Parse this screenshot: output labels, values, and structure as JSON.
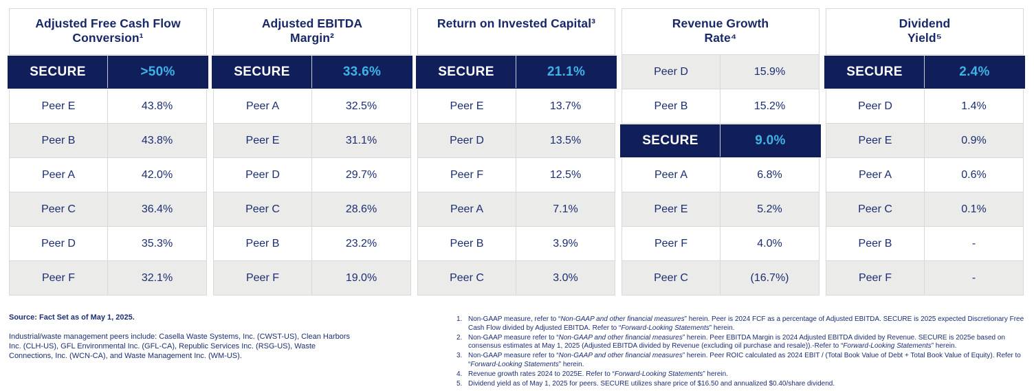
{
  "colors": {
    "brand_navy": "#101e5a",
    "brand_cyan": "#3fb3e5",
    "text_navy": "#1b2d73",
    "row_gray": "#ebebe9",
    "border_gray": "#d8d8d6"
  },
  "table": {
    "columns": [
      {
        "id": "adjusted-free-cash-flow-conversion",
        "title_lines": [
          "Adjusted Free Cash Flow",
          "Conversion¹"
        ],
        "rows": [
          {
            "name": "SECURE",
            "value": ">50%",
            "style": "secure"
          },
          {
            "name": "Peer E",
            "value": "43.8%",
            "style": "white"
          },
          {
            "name": "Peer B",
            "value": "43.8%",
            "style": "gray"
          },
          {
            "name": "Peer A",
            "value": "42.0%",
            "style": "white"
          },
          {
            "name": "Peer C",
            "value": "36.4%",
            "style": "gray"
          },
          {
            "name": "Peer D",
            "value": "35.3%",
            "style": "white"
          },
          {
            "name": "Peer F",
            "value": "32.1%",
            "style": "gray"
          }
        ]
      },
      {
        "id": "adjusted-ebitda-margin",
        "title_lines": [
          "Adjusted EBITDA",
          "Margin²"
        ],
        "rows": [
          {
            "name": "SECURE",
            "value": "33.6%",
            "style": "secure"
          },
          {
            "name": "Peer A",
            "value": "32.5%",
            "style": "white"
          },
          {
            "name": "Peer E",
            "value": "31.1%",
            "style": "gray"
          },
          {
            "name": "Peer D",
            "value": "29.7%",
            "style": "white"
          },
          {
            "name": "Peer C",
            "value": "28.6%",
            "style": "gray"
          },
          {
            "name": "Peer B",
            "value": "23.2%",
            "style": "white"
          },
          {
            "name": "Peer F",
            "value": "19.0%",
            "style": "gray"
          }
        ]
      },
      {
        "id": "return-on-invested-capital",
        "title_lines": [
          "Return on Invested Capital³"
        ],
        "rows": [
          {
            "name": "SECURE",
            "value": "21.1%",
            "style": "secure"
          },
          {
            "name": "Peer E",
            "value": "13.7%",
            "style": "white"
          },
          {
            "name": "Peer D",
            "value": "13.5%",
            "style": "gray"
          },
          {
            "name": "Peer F",
            "value": "12.5%",
            "style": "white"
          },
          {
            "name": "Peer A",
            "value": "7.1%",
            "style": "gray"
          },
          {
            "name": "Peer B",
            "value": "3.9%",
            "style": "white"
          },
          {
            "name": "Peer C",
            "value": "3.0%",
            "style": "gray"
          }
        ]
      },
      {
        "id": "revenue-growth-rate",
        "title_lines": [
          "Revenue Growth",
          "Rate⁴"
        ],
        "rows": [
          {
            "name": "Peer D",
            "value": "15.9%",
            "style": "gray"
          },
          {
            "name": "Peer B",
            "value": "15.2%",
            "style": "white"
          },
          {
            "name": "SECURE",
            "value": "9.0%",
            "style": "secure"
          },
          {
            "name": "Peer A",
            "value": "6.8%",
            "style": "white"
          },
          {
            "name": "Peer E",
            "value": "5.2%",
            "style": "gray"
          },
          {
            "name": "Peer F",
            "value": "4.0%",
            "style": "white"
          },
          {
            "name": "Peer C",
            "value": "(16.7%)",
            "style": "gray"
          }
        ]
      },
      {
        "id": "dividend-yield",
        "title_lines": [
          "Dividend",
          "Yield⁵"
        ],
        "rows": [
          {
            "name": "SECURE",
            "value": "2.4%",
            "style": "secure"
          },
          {
            "name": "Peer D",
            "value": "1.4%",
            "style": "white"
          },
          {
            "name": "Peer E",
            "value": "0.9%",
            "style": "gray"
          },
          {
            "name": "Peer A",
            "value": "0.6%",
            "style": "white"
          },
          {
            "name": "Peer C",
            "value": "0.1%",
            "style": "gray"
          },
          {
            "name": "Peer B",
            "value": "-",
            "style": "white"
          },
          {
            "name": "Peer F",
            "value": "-",
            "style": "gray"
          }
        ]
      }
    ]
  },
  "footer": {
    "source": "Source: Fact Set as of May 1, 2025.",
    "peers_note": "Industrial/waste management peers include: Casella Waste Systems, Inc. (CWST-US), Clean Harbors Inc. (CLH-US), GFL Environmental Inc. (GFL-CA), Republic Services Inc. (RSG-US), Waste Connections, Inc. (WCN-CA), and Waste Management Inc. (WM-US).",
    "footnotes": [
      {
        "num": "1.",
        "segments": [
          {
            "text": "Non-GAAP measure, refer to “"
          },
          {
            "text": "Non-GAAP and other financial measures",
            "italic": true
          },
          {
            "text": "” herein. Peer is 2024 FCF as a percentage of Adjusted EBITDA. SECURE is 2025 expected Discretionary Free Cash Flow divided by Adjusted EBITDA. Refer to “"
          },
          {
            "text": "Forward-Looking Statements",
            "italic": true
          },
          {
            "text": "” herein."
          }
        ]
      },
      {
        "num": "2.",
        "segments": [
          {
            "text": "Non-GAAP measure refer to “"
          },
          {
            "text": "Non-GAAP and other financial measures",
            "italic": true
          },
          {
            "text": "” herein. Peer EBITDA Margin is 2024 Adjusted EBITDA divided by Revenue. SECURE is 2025e based on consensus estimates at May 1, 2025 (Adjusted EBITDA divided by Revenue (excluding oil purchase and resale)).-Refer to “"
          },
          {
            "text": "Forward-Looking Statements",
            "italic": true
          },
          {
            "text": "” herein."
          }
        ]
      },
      {
        "num": "3.",
        "segments": [
          {
            "text": "Non-GAAP measure refer to “"
          },
          {
            "text": "Non-GAAP and other financial measures",
            "italic": true
          },
          {
            "text": "” herein. Peer ROIC calculated as 2024 EBIT / (Total Book Value of Debt + Total Book Value of Equity). Refer to “"
          },
          {
            "text": "Forward-Looking Statements",
            "italic": true
          },
          {
            "text": "” herein."
          }
        ]
      },
      {
        "num": "4.",
        "segments": [
          {
            "text": "Revenue growth rates 2024 to 2025E. Refer to “"
          },
          {
            "text": "Forward-Looking Statements",
            "italic": true
          },
          {
            "text": "” herein."
          }
        ]
      },
      {
        "num": "5.",
        "segments": [
          {
            "text": "Dividend yield as of May 1, 2025 for peers. SECURE utilizes share price of $16.50 and annualized $0.40/share dividend."
          }
        ]
      }
    ]
  }
}
